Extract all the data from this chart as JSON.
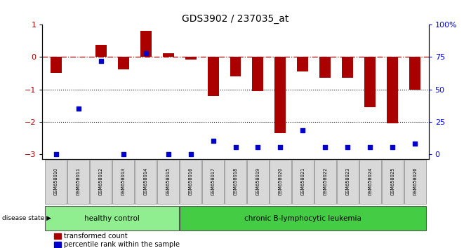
{
  "title": "GDS3902 / 237035_at",
  "samples": [
    "GSM658010",
    "GSM658011",
    "GSM658012",
    "GSM658013",
    "GSM658014",
    "GSM658015",
    "GSM658016",
    "GSM658017",
    "GSM658018",
    "GSM658019",
    "GSM658020",
    "GSM658021",
    "GSM658022",
    "GSM658023",
    "GSM658024",
    "GSM658025",
    "GSM658026"
  ],
  "bar_values": [
    -0.5,
    0.0,
    0.38,
    -0.38,
    0.82,
    0.12,
    -0.08,
    -1.2,
    -0.6,
    -1.05,
    -2.35,
    -0.45,
    -0.65,
    -0.65,
    -1.55,
    -2.05,
    -1.02
  ],
  "dot_pct": [
    0,
    35,
    72,
    0,
    78,
    0,
    0,
    10,
    5,
    5,
    5,
    18,
    5,
    5,
    5,
    5,
    8
  ],
  "healthy_control_count": 6,
  "ylim_lo": -3.15,
  "ylim_hi": 1.0,
  "yticks": [
    -3,
    -2,
    -1,
    0,
    1
  ],
  "y2ticks_pct": [
    0,
    25,
    50,
    75,
    100
  ],
  "bar_color": "#AA0000",
  "dot_color": "#0000CC",
  "healthy_color": "#90EE90",
  "leukemia_color": "#44CC44",
  "healthy_label": "healthy control",
  "leukemia_label": "chronic B-lymphocytic leukemia",
  "legend_bar_label": "transformed count",
  "legend_dot_label": "percentile rank within the sample",
  "disease_state_label": "disease state",
  "dotted_lines": [
    -1.0,
    -2.0
  ],
  "bg_color": "#FFFFFF"
}
